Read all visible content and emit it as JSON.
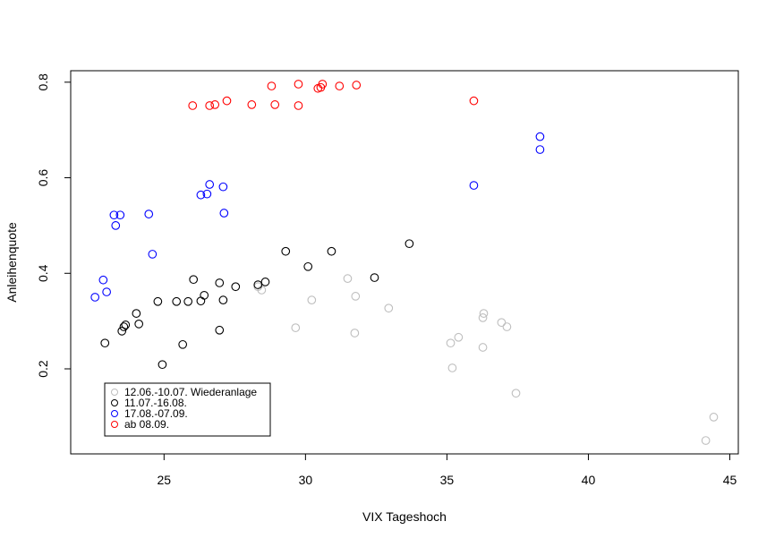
{
  "chart_data": {
    "type": "scatter",
    "xlabel": "VIX Tageshoch",
    "ylabel": "Anleihenquote",
    "xlim": [
      21.7,
      45.3
    ],
    "ylim": [
      0.022,
      0.824
    ],
    "xticks": [
      25,
      30,
      35,
      40,
      45
    ],
    "yticks": [
      0.2,
      0.4,
      0.6,
      0.8
    ],
    "legend": "bottomleft",
    "series": [
      {
        "name": "12.06.-10.07. Wiederanlage",
        "color": "#bebebe",
        "x": [
          28.32,
          28.45,
          29.65,
          30.22,
          31.49,
          31.77,
          31.74,
          32.94,
          35.13,
          35.19,
          35.41,
          36.3,
          36.27,
          36.27,
          36.93,
          37.12,
          37.44,
          44.15,
          44.43
        ],
        "values": [
          0.372,
          0.365,
          0.286,
          0.344,
          0.389,
          0.352,
          0.275,
          0.327,
          0.254,
          0.202,
          0.266,
          0.316,
          0.307,
          0.245,
          0.297,
          0.288,
          0.149,
          0.05,
          0.099
        ]
      },
      {
        "name": "11.07.-16.08.",
        "color": "#000000",
        "x": [
          22.91,
          23.51,
          23.58,
          23.64,
          24.02,
          24.11,
          24.78,
          24.94,
          25.44,
          25.66,
          25.85,
          26.04,
          26.3,
          26.42,
          26.96,
          26.96,
          27.09,
          27.53,
          28.32,
          28.58,
          29.3,
          30.09,
          30.92,
          32.44,
          33.67
        ],
        "values": [
          0.254,
          0.279,
          0.288,
          0.292,
          0.316,
          0.294,
          0.341,
          0.209,
          0.341,
          0.251,
          0.341,
          0.387,
          0.342,
          0.354,
          0.38,
          0.281,
          0.344,
          0.372,
          0.376,
          0.382,
          0.446,
          0.414,
          0.446,
          0.391,
          0.462
        ]
      },
      {
        "name": "17.08.-07.09.",
        "color": "#0000ff",
        "x": [
          22.56,
          22.85,
          22.97,
          23.23,
          23.29,
          23.45,
          24.46,
          24.59,
          26.3,
          26.52,
          26.61,
          27.09,
          27.12,
          35.95,
          38.29,
          38.29
        ],
        "values": [
          0.35,
          0.386,
          0.361,
          0.522,
          0.5,
          0.522,
          0.524,
          0.44,
          0.564,
          0.566,
          0.586,
          0.581,
          0.526,
          0.584,
          0.686,
          0.659
        ]
      },
      {
        "name": "ab 08.09.",
        "color": "#ff0000",
        "x": [
          26.01,
          26.61,
          26.8,
          27.22,
          28.1,
          28.8,
          28.92,
          29.75,
          29.75,
          30.44,
          30.54,
          30.6,
          31.2,
          31.8,
          35.95
        ],
        "values": [
          0.751,
          0.751,
          0.753,
          0.761,
          0.753,
          0.792,
          0.753,
          0.796,
          0.751,
          0.787,
          0.789,
          0.796,
          0.792,
          0.794,
          0.761
        ]
      }
    ]
  }
}
